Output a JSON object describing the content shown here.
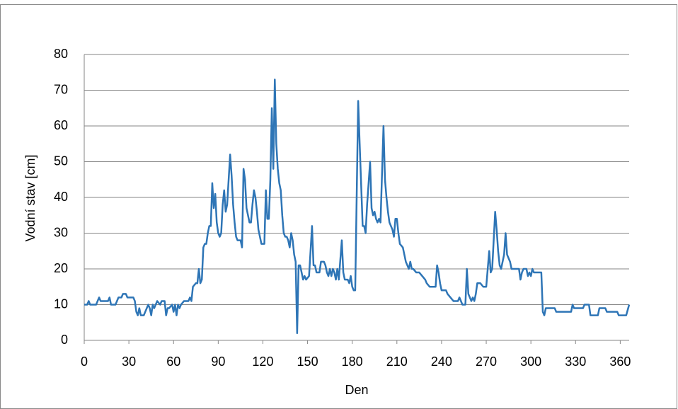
{
  "chart_data": {
    "type": "line",
    "xlabel": "Den",
    "ylabel": "Vodní stav [cm]",
    "xlim": [
      0,
      366
    ],
    "ylim": [
      0,
      80
    ],
    "xticks": [
      0,
      30,
      60,
      90,
      120,
      150,
      180,
      210,
      240,
      270,
      300,
      330,
      360
    ],
    "yticks": [
      0,
      10,
      20,
      30,
      40,
      50,
      60,
      70,
      80
    ],
    "grid": true,
    "series": [
      {
        "color": "#2e75b6",
        "x": [
          0,
          2,
          3,
          4,
          8,
          10,
          11,
          16,
          17,
          18,
          21,
          23,
          25,
          26,
          28,
          29,
          33,
          34,
          35,
          36,
          37,
          38,
          40,
          42,
          43,
          44,
          45,
          46,
          47,
          49,
          51,
          52,
          54,
          55,
          56,
          57,
          59,
          60,
          61,
          62,
          63,
          64,
          65,
          67,
          70,
          71,
          72,
          73,
          75,
          76,
          77,
          78,
          79,
          80,
          81,
          82,
          83,
          84,
          85,
          86,
          87,
          88,
          89,
          90,
          91,
          92,
          93,
          94,
          95,
          96,
          97,
          98,
          99,
          100,
          101,
          102,
          103,
          105,
          106,
          107,
          108,
          109,
          110,
          111,
          112,
          113,
          114,
          115,
          116,
          117,
          118,
          119,
          121,
          122,
          123,
          124,
          125,
          126,
          127,
          128,
          129,
          130,
          131,
          132,
          133,
          134,
          135,
          136,
          137,
          138,
          139,
          140,
          141,
          142,
          143,
          144,
          145,
          146,
          147,
          148,
          149,
          151,
          153,
          154,
          155,
          156,
          158,
          159,
          161,
          162,
          163,
          164,
          165,
          166,
          167,
          168,
          169,
          170,
          171,
          173,
          174,
          175,
          177,
          178,
          179,
          180,
          181,
          182,
          184,
          185,
          187,
          188,
          189,
          190,
          192,
          193,
          194,
          195,
          196,
          197,
          198,
          199,
          201,
          202,
          203,
          204,
          205,
          207,
          208,
          209,
          210,
          211,
          212,
          214,
          215,
          216,
          217,
          218,
          219,
          220,
          221,
          223,
          225,
          227,
          229,
          230,
          232,
          236,
          237,
          238,
          239,
          240,
          243,
          244,
          246,
          248,
          251,
          252,
          254,
          256,
          257,
          258,
          259,
          260,
          261,
          262,
          263,
          264,
          266,
          268,
          270,
          272,
          273,
          274,
          276,
          277,
          278,
          279,
          280,
          282,
          283,
          284,
          285,
          286,
          287,
          289,
          292,
          293,
          294,
          295,
          297,
          298,
          299,
          300,
          301,
          302,
          307,
          308,
          309,
          310,
          316,
          317,
          327,
          328,
          329,
          335,
          336,
          339,
          340,
          345,
          346,
          350,
          351,
          358,
          359,
          364,
          366
        ],
        "values": [
          10,
          10,
          11,
          10,
          10,
          12,
          11,
          11,
          12,
          10,
          10,
          12,
          12,
          13,
          13,
          12,
          12,
          11,
          8,
          7,
          9,
          7,
          7,
          9,
          10,
          9,
          7,
          10,
          9,
          11,
          10,
          11,
          11,
          7,
          9,
          9,
          10,
          8,
          10,
          7,
          10,
          9,
          10,
          11,
          11,
          12,
          11,
          15,
          16,
          16,
          20,
          16,
          17,
          26,
          27,
          27,
          30,
          32,
          32,
          44,
          37,
          41,
          33,
          30,
          29,
          30,
          38,
          42,
          36,
          38,
          45,
          52,
          46,
          38,
          33,
          29,
          28,
          28,
          26,
          48,
          45,
          37,
          35,
          33,
          33,
          38,
          42,
          40,
          36,
          31,
          29,
          27,
          27,
          42,
          34,
          34,
          45,
          65,
          48,
          73,
          55,
          48,
          44,
          42,
          35,
          30,
          29,
          29,
          28,
          26,
          30,
          28,
          24,
          22,
          2,
          21,
          21,
          19,
          17,
          18,
          17,
          18,
          32,
          21,
          21,
          19,
          19,
          22,
          22,
          21,
          19,
          18,
          20,
          18,
          20,
          19,
          17,
          20,
          17,
          28,
          19,
          17,
          17,
          16,
          18,
          15,
          14,
          14,
          67,
          55,
          32,
          32,
          30,
          38,
          50,
          37,
          35,
          36,
          34,
          33,
          34,
          33,
          60,
          45,
          40,
          36,
          33,
          31,
          29,
          34,
          34,
          30,
          27,
          26,
          24,
          22,
          21,
          20,
          22,
          20,
          20,
          19,
          19,
          18,
          17,
          16,
          15,
          15,
          21,
          19,
          16,
          14,
          14,
          13,
          12,
          11,
          11,
          12,
          10,
          10,
          20,
          13,
          12,
          11,
          12,
          11,
          13,
          16,
          16,
          15,
          15,
          25,
          19,
          20,
          36,
          31,
          25,
          21,
          20,
          24,
          30,
          24,
          23,
          22,
          20,
          20,
          20,
          17,
          19,
          20,
          20,
          18,
          19,
          18,
          20,
          19,
          19,
          8,
          7,
          9,
          9,
          8,
          8,
          10,
          9,
          9,
          10,
          10,
          7,
          7,
          9,
          9,
          8,
          8,
          7,
          7,
          10
        ]
      }
    ]
  }
}
